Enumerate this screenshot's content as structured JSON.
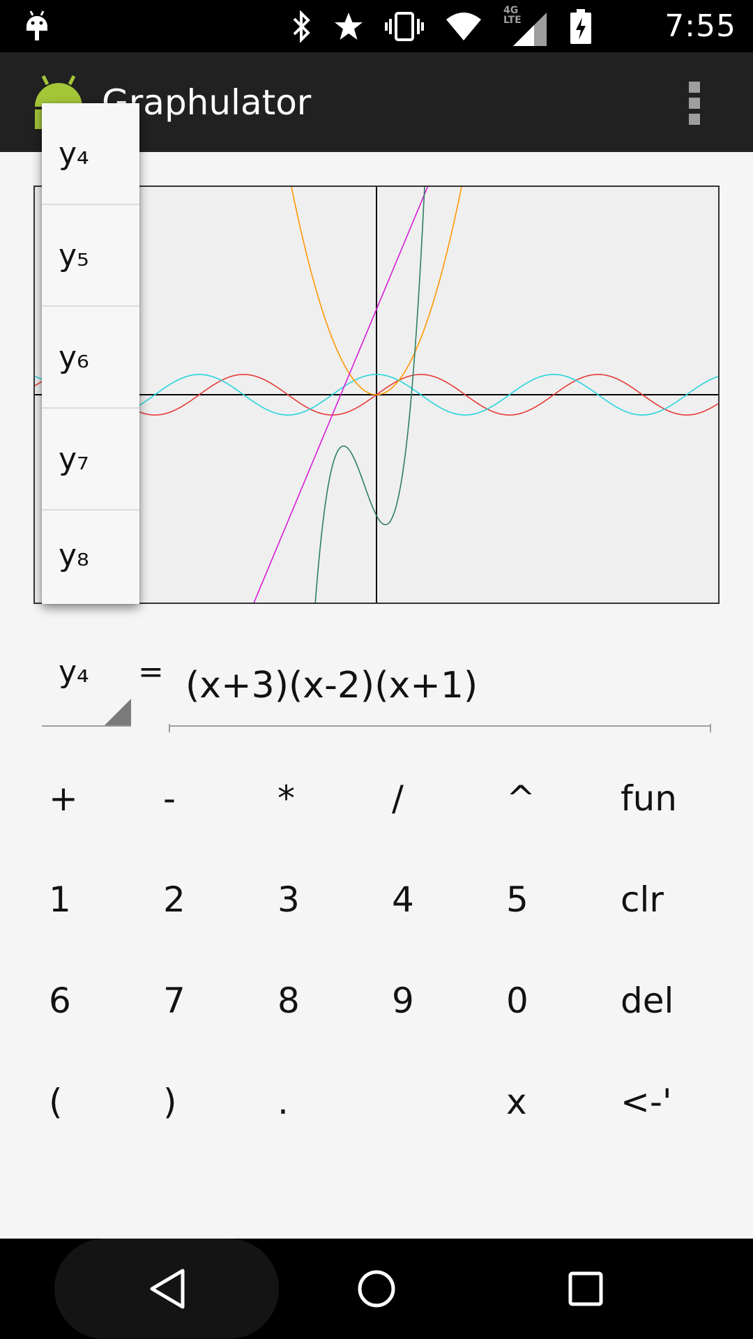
{
  "status_bar": {
    "time": "7:55",
    "network": "4G LTE",
    "icons": [
      "android-debug-icon",
      "bluetooth-icon",
      "star-icon",
      "vibrate-icon",
      "wifi-icon",
      "signal-icon",
      "battery-charging-icon"
    ]
  },
  "action_bar": {
    "title": "Graphulator",
    "overflow_icon": "overflow-menu-icon"
  },
  "dropdown": {
    "items": [
      "y₄",
      "y₅",
      "y₆",
      "y₇",
      "y₈"
    ]
  },
  "function_row": {
    "selected": "y₄",
    "equals": "=",
    "expression": "(x+3)(x-2)(x+1)"
  },
  "keypad": {
    "rows": [
      [
        "+",
        "-",
        "*",
        "/",
        "^",
        "fun"
      ],
      [
        "1",
        "2",
        "3",
        "4",
        "5",
        "clr"
      ],
      [
        "6",
        "7",
        "8",
        "9",
        "0",
        "del"
      ],
      [
        "(",
        ")",
        ".",
        "",
        "x",
        "<-'"
      ]
    ]
  },
  "graph": {
    "background": "#efefef",
    "axis_color": "#000000",
    "curve_colors": {
      "sin": "#e53935",
      "cos": "#26d4dc",
      "parabola": "#ff9800",
      "line": "#d81bd8",
      "cubic": "#2e7d62"
    }
  },
  "nav_bar": {
    "icons": [
      "back-icon",
      "home-icon",
      "recents-icon"
    ]
  }
}
